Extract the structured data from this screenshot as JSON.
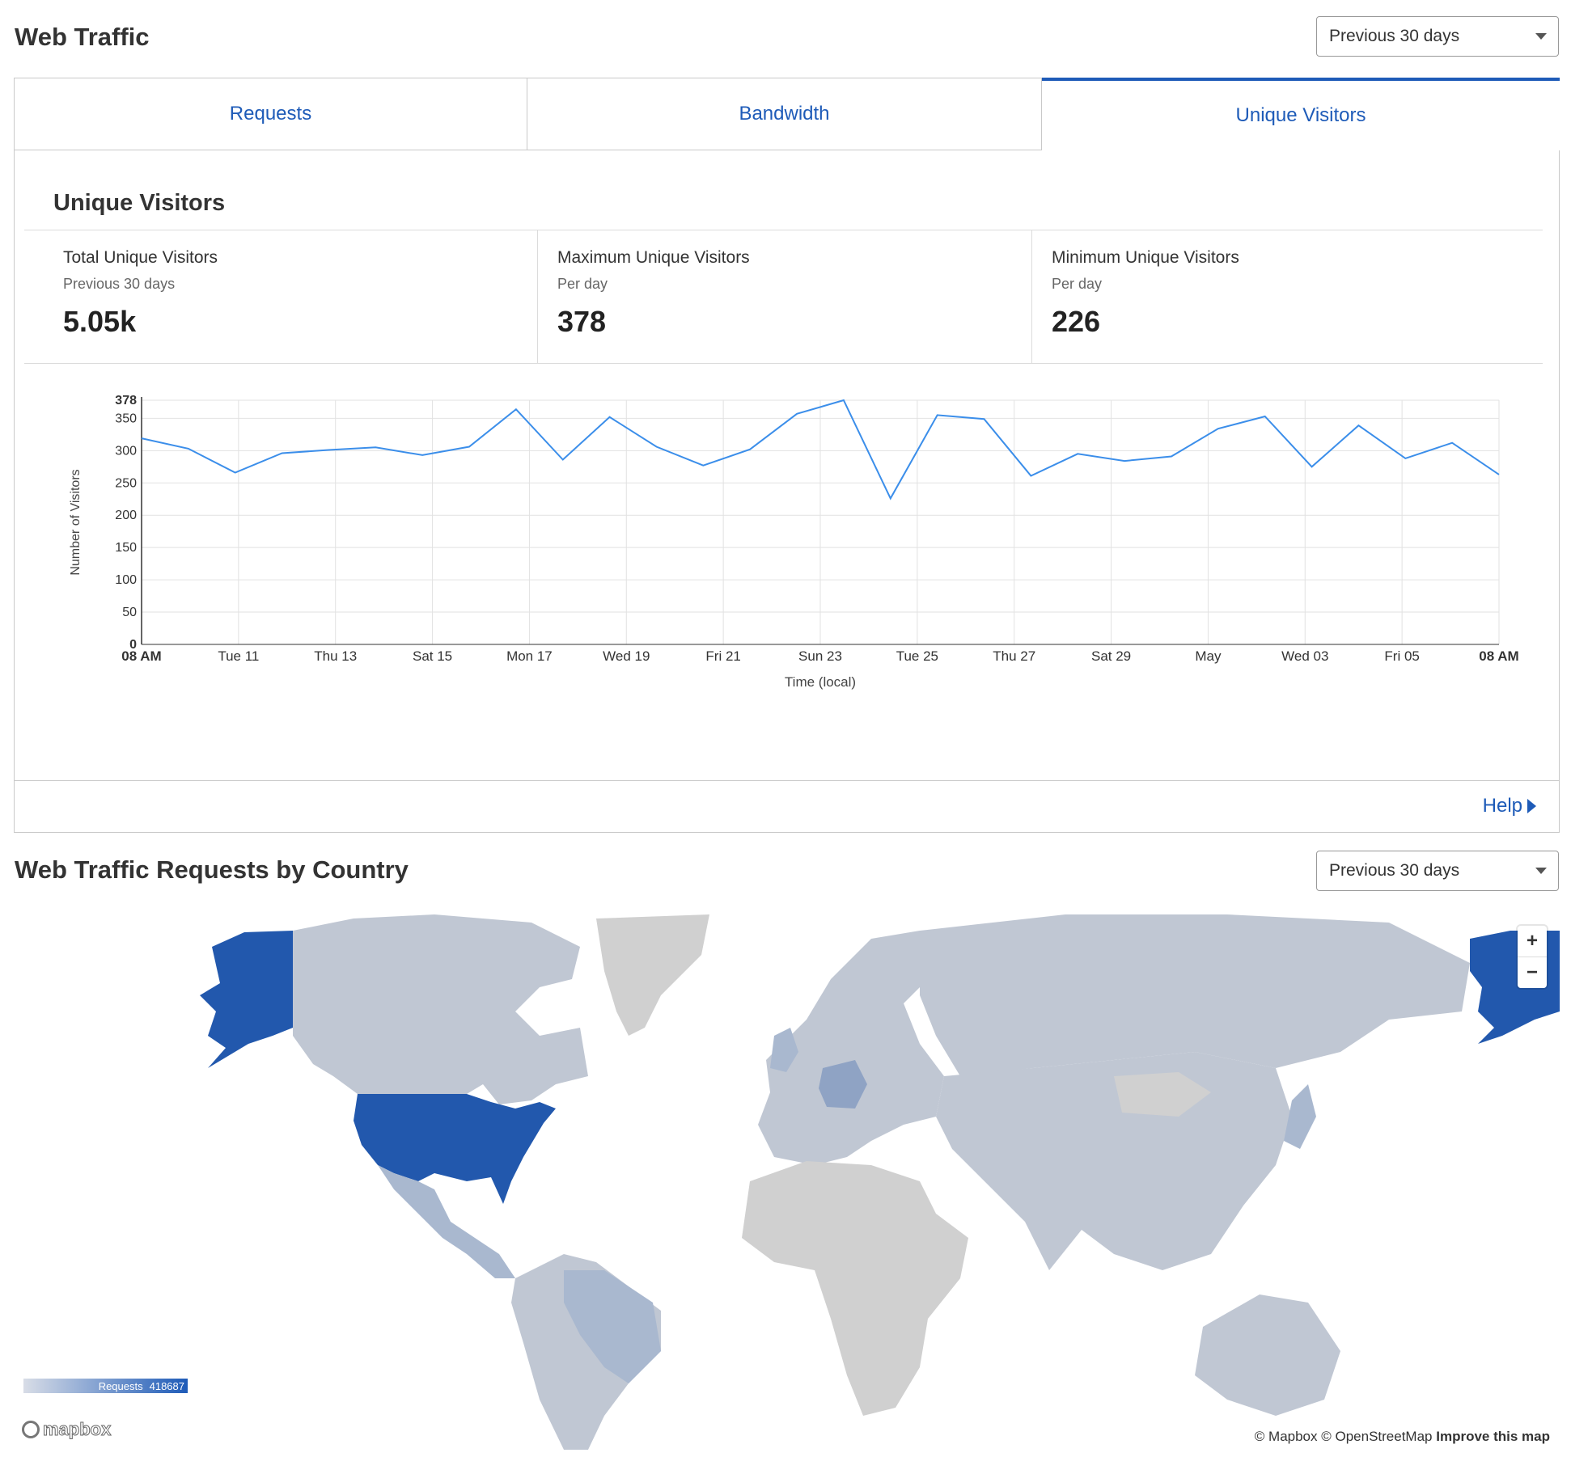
{
  "page": {
    "title": "Web Traffic",
    "range_select": "Previous 30 days"
  },
  "tabs": [
    {
      "label": "Requests",
      "active": false
    },
    {
      "label": "Bandwidth",
      "active": false
    },
    {
      "label": "Unique Visitors",
      "active": true
    }
  ],
  "panel": {
    "heading": "Unique Visitors",
    "help_label": "Help"
  },
  "stats": [
    {
      "label": "Total Unique Visitors",
      "sub": "Previous 30 days",
      "value": "5.05k"
    },
    {
      "label": "Maximum Unique Visitors",
      "sub": "Per day",
      "value": "378"
    },
    {
      "label": "Minimum Unique Visitors",
      "sub": "Per day",
      "value": "226"
    }
  ],
  "chart_data": {
    "type": "line",
    "xlabel": "Time (local)",
    "ylabel": "Number of Visitors",
    "ylim": [
      0,
      378
    ],
    "y_ticks": [
      "0",
      "50",
      "100",
      "150",
      "200",
      "250",
      "300",
      "350",
      "378"
    ],
    "x_tick_labels": [
      "08 AM",
      "Tue 11",
      "Thu 13",
      "Sat 15",
      "Mon 17",
      "Wed 19",
      "Fri 21",
      "Sun 23",
      "Tue 25",
      "Thu 27",
      "Sat 29",
      "May",
      "Wed 03",
      "Fri 05",
      "08 AM"
    ],
    "grid": true,
    "series_color": "#3b8eea",
    "values": [
      319,
      303,
      266,
      296,
      301,
      305,
      293,
      306,
      364,
      286,
      352,
      306,
      277,
      302,
      357,
      378,
      226,
      355,
      349,
      261,
      295,
      284,
      291,
      334,
      353,
      275,
      339,
      288,
      312,
      263
    ]
  },
  "map": {
    "title": "Web Traffic Requests by Country",
    "range_select": "Previous 30 days",
    "legend_label": "Requests",
    "legend_max": "418687",
    "zoom_in": "+",
    "zoom_out": "−",
    "logo": "mapbox",
    "attribution": "© Mapbox © OpenStreetMap",
    "improve_link": "Improve this map",
    "colors": {
      "max": "#2258ad",
      "mid": "#a9b8cf",
      "low": "#c0c7d3",
      "none": "#d0d0d0"
    }
  }
}
